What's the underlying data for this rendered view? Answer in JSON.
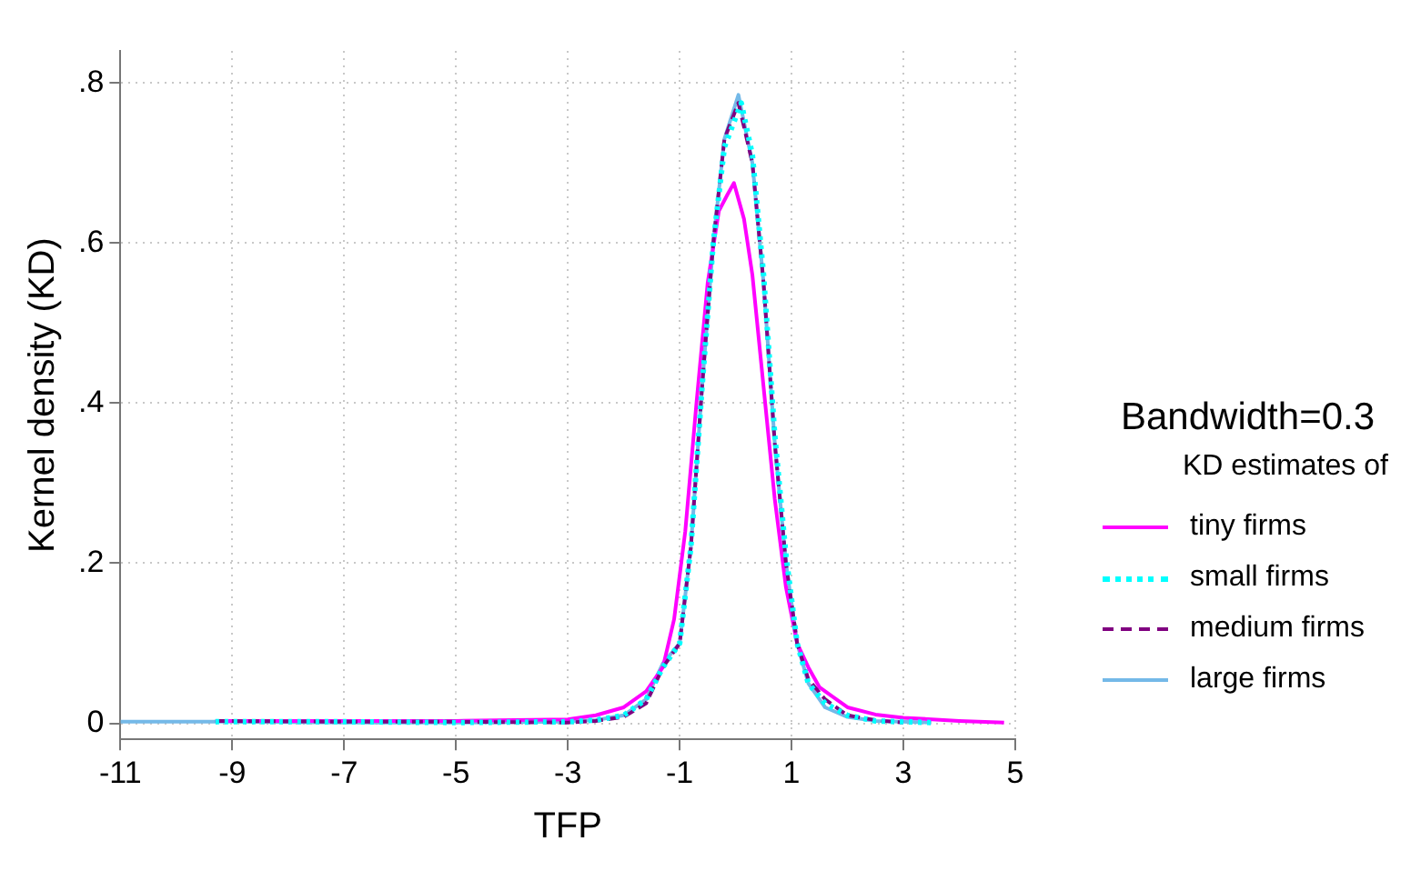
{
  "chart_data": {
    "type": "line",
    "xlabel": "TFP",
    "ylabel": "Kernel density (KD)",
    "legend_title": "Bandwidth=0.3",
    "annotations": [
      "KD estimates of"
    ],
    "xlim": [
      -11,
      5
    ],
    "xticks": [
      -11,
      -9,
      -7,
      -5,
      -3,
      -1,
      1,
      3,
      5
    ],
    "ylim": [
      -0.02,
      0.84
    ],
    "yticks": [
      0,
      {
        "value": 0.2,
        "label": ".2"
      },
      {
        "value": 0.4,
        "label": ".4"
      },
      {
        "value": 0.6,
        "label": ".6"
      },
      {
        "value": 0.8,
        "label": ".8"
      }
    ],
    "grid": true,
    "legend": "right",
    "marker": "none",
    "series": [
      {
        "name": "tiny firms",
        "color": "#ff00ff",
        "line_style": "solid",
        "x": [
          -9.3,
          -7,
          -5,
          -3,
          -2.5,
          -2,
          -1.6,
          -1.3,
          -1.1,
          -0.9,
          -0.7,
          -0.5,
          -0.3,
          -0.15,
          -0.03,
          0.15,
          0.3,
          0.5,
          0.7,
          0.9,
          1.1,
          1.3,
          1.5,
          2,
          2.5,
          3,
          4,
          4.8
        ],
        "values": [
          0.003,
          0.003,
          0.003,
          0.005,
          0.01,
          0.02,
          0.04,
          0.07,
          0.13,
          0.24,
          0.4,
          0.55,
          0.64,
          0.66,
          0.675,
          0.63,
          0.56,
          0.42,
          0.28,
          0.17,
          0.1,
          0.07,
          0.045,
          0.02,
          0.011,
          0.007,
          0.003,
          0.001
        ]
      },
      {
        "name": "small firms",
        "color": "#00ffff",
        "line_style": "dotted",
        "x": [
          -9.3,
          -7,
          -5,
          -3,
          -2.5,
          -2,
          -1.6,
          -1.3,
          -1,
          -0.8,
          -0.6,
          -0.4,
          -0.2,
          0.1,
          0.3,
          0.5,
          0.7,
          0.9,
          1.1,
          1.3,
          1.6,
          2,
          2.5,
          3.5
        ],
        "values": [
          0.002,
          0.002,
          0.001,
          0.002,
          0.004,
          0.01,
          0.03,
          0.07,
          0.1,
          0.22,
          0.42,
          0.6,
          0.72,
          0.775,
          0.71,
          0.56,
          0.36,
          0.21,
          0.1,
          0.05,
          0.025,
          0.01,
          0.003,
          0.001
        ]
      },
      {
        "name": "medium firms",
        "color": "#800080",
        "line_style": "dashed",
        "x": [
          -9.3,
          -7,
          -5,
          -3,
          -2.5,
          -2,
          -1.6,
          -1.3,
          -1,
          -0.8,
          -0.6,
          -0.4,
          -0.2,
          0.05,
          0.3,
          0.5,
          0.7,
          0.9,
          1.1,
          1.3,
          1.6,
          2,
          2.5,
          3
        ],
        "values": [
          0.003,
          0.002,
          0.002,
          0.001,
          0.003,
          0.008,
          0.025,
          0.07,
          0.1,
          0.22,
          0.42,
          0.6,
          0.73,
          0.775,
          0.7,
          0.55,
          0.35,
          0.2,
          0.1,
          0.055,
          0.03,
          0.01,
          0.004,
          0.001
        ]
      },
      {
        "name": "large firms",
        "color": "#74b9e8",
        "line_style": "solid",
        "x": [
          -11,
          -9,
          -7,
          -5,
          -3,
          -2.5,
          -2,
          -1.6,
          -1.3,
          -1,
          -0.8,
          -0.6,
          -0.4,
          -0.2,
          0.05,
          0.3,
          0.5,
          0.7,
          0.9,
          1.1,
          1.3,
          1.6,
          2,
          2.5,
          3.5
        ],
        "values": [
          0.002,
          0.002,
          0.001,
          0.001,
          0.002,
          0.004,
          0.01,
          0.03,
          0.075,
          0.1,
          0.22,
          0.42,
          0.6,
          0.73,
          0.785,
          0.7,
          0.55,
          0.35,
          0.2,
          0.1,
          0.05,
          0.02,
          0.008,
          0.003,
          0.001
        ]
      }
    ]
  }
}
